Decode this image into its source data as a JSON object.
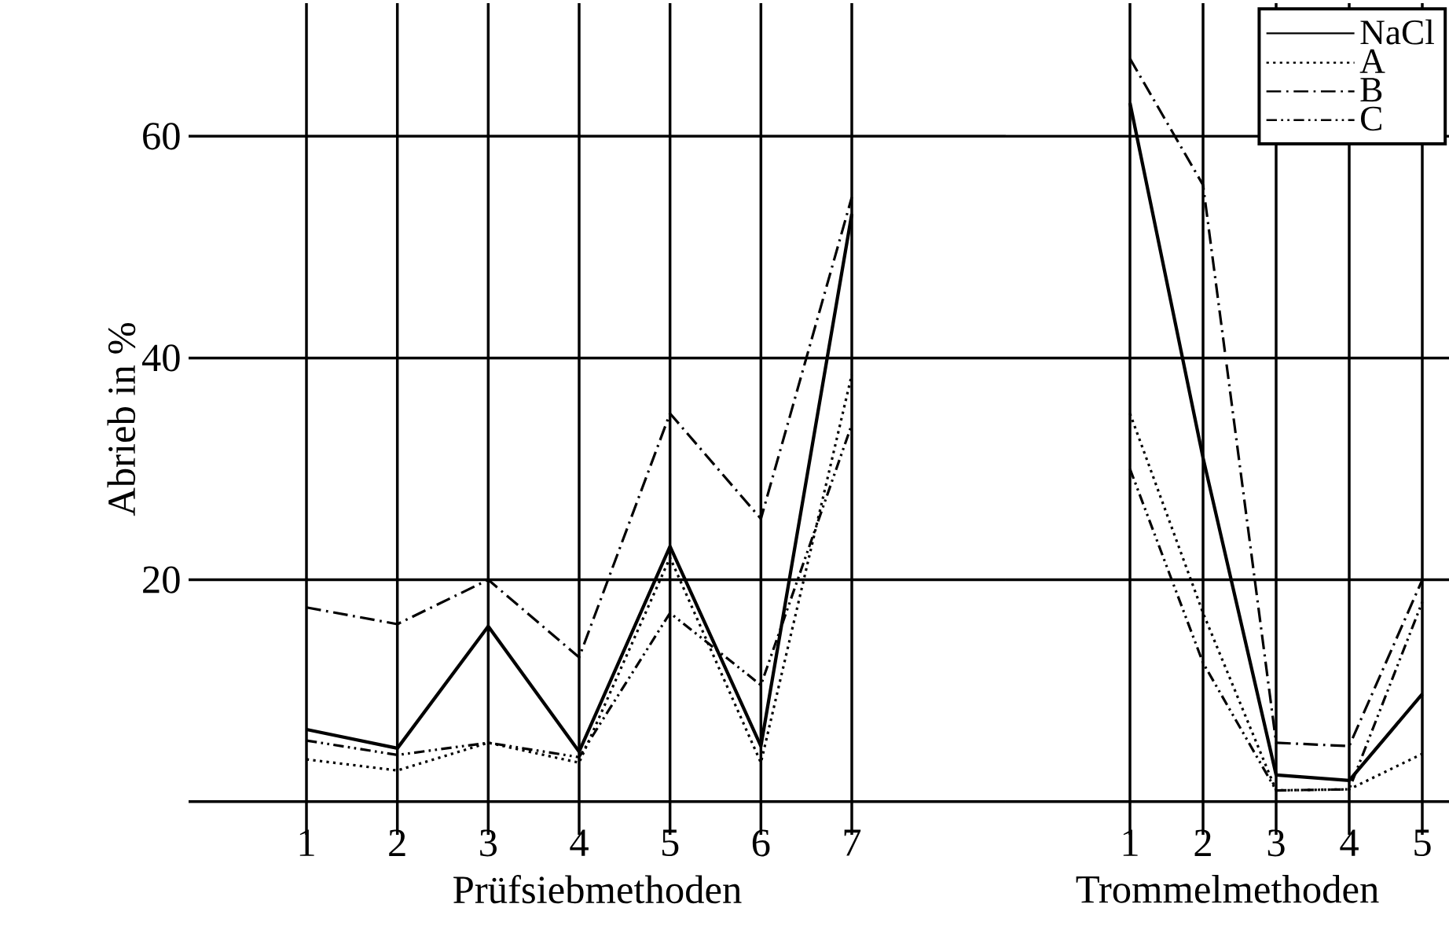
{
  "chart_data": [
    {
      "type": "line",
      "categories": [
        "1",
        "2",
        "3",
        "4",
        "5",
        "6",
        "7"
      ],
      "xlabel": "Prüfsiebmethoden",
      "ylabel": "Abrieb in %",
      "ylim": [
        -3,
        72
      ],
      "yticks": [
        {
          "value": 0,
          "label": null
        },
        20,
        40,
        60
      ],
      "grid": true,
      "legend": false,
      "series": [
        {
          "color": "#000000",
          "line_style": "solid",
          "values": [
            6.5,
            4.8,
            15.8,
            4.5,
            23,
            5,
            53
          ]
        },
        {
          "color": "#000000",
          "line_style": "dotted",
          "values": [
            3.8,
            2.8,
            5.3,
            3.5,
            22,
            3.5,
            38.5
          ]
        },
        {
          "color": "#000000",
          "line_style": "dashdot",
          "values": [
            17.5,
            16,
            20,
            13,
            35,
            25.5,
            54.5
          ]
        },
        {
          "color": "#000000",
          "line_style": "dashdotdot",
          "values": [
            5.5,
            4.2,
            5.3,
            4,
            17,
            10.5,
            34
          ]
        }
      ]
    },
    {
      "type": "line",
      "categories": [
        "1",
        "2",
        "3",
        "4",
        "5"
      ],
      "xlabel": "Trommelmethoden",
      "ylim": [
        -3,
        72
      ],
      "yticks": [
        {
          "value": 0,
          "label": null
        },
        20,
        40,
        60
      ],
      "tick_labels": "x",
      "grid": true,
      "legend": "top right",
      "series": [
        {
          "name": "NaCl",
          "color": "#000000",
          "line_style": "solid",
          "values": [
            63,
            31,
            2.4,
            1.9,
            9.7
          ]
        },
        {
          "name": "A",
          "color": "#000000",
          "line_style": "dotted",
          "values": [
            35,
            17,
            1,
            1.1,
            4.3
          ]
        },
        {
          "name": "B",
          "color": "#000000",
          "line_style": "dashdot",
          "values": [
            67,
            55.6,
            5.3,
            5,
            20
          ]
        },
        {
          "name": "C",
          "color": "#000000",
          "line_style": "dashdotdot",
          "values": [
            30,
            12.5,
            1,
            1.1,
            18
          ]
        }
      ]
    }
  ]
}
